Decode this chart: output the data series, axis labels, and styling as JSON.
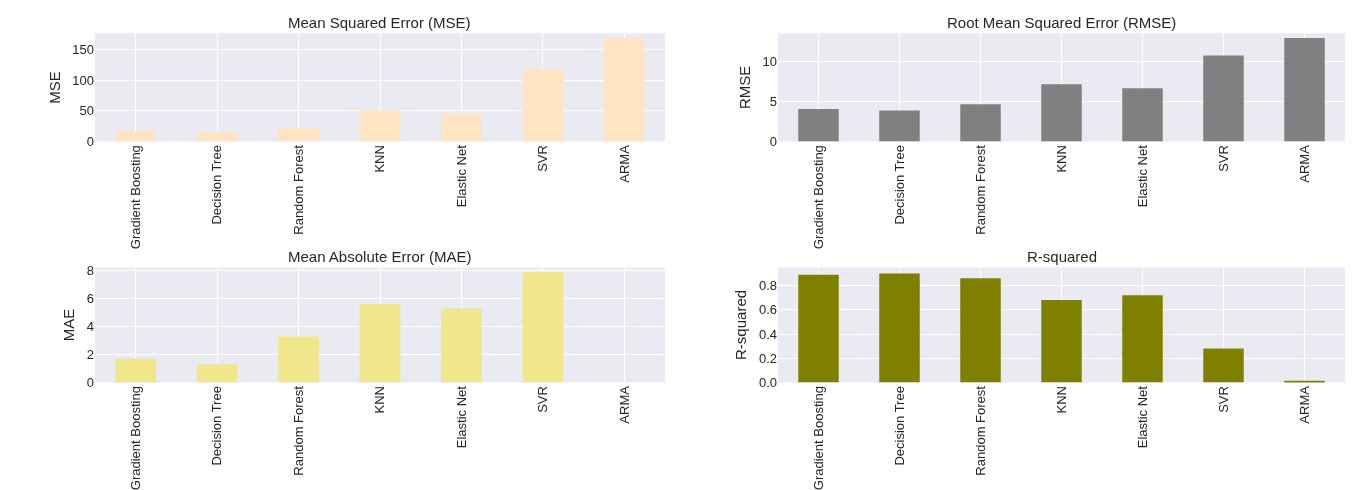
{
  "chart_data": [
    {
      "type": "bar",
      "title": "Mean Squared Error (MSE)",
      "ylabel": "MSE",
      "categories": [
        "Gradient Boosting",
        "Decision Tree",
        "Random Forest",
        "KNN",
        "Elastic Net",
        "SVR",
        "ARMA"
      ],
      "values": [
        17,
        15,
        22,
        51,
        45,
        117,
        168
      ],
      "color": "#ffe4c4",
      "ylim": [
        0,
        176
      ],
      "yticks": [
        0,
        50,
        100,
        150
      ],
      "grid": true
    },
    {
      "type": "bar",
      "title": "Root Mean Squared Error (RMSE)",
      "ylabel": "RMSE",
      "categories": [
        "Gradient Boosting",
        "Decision Tree",
        "Random Forest",
        "KNN",
        "Elastic Net",
        "SVR",
        "ARMA"
      ],
      "values": [
        4.1,
        3.9,
        4.7,
        7.2,
        6.7,
        10.8,
        13.0
      ],
      "color": "#808080",
      "ylim": [
        0,
        13.6
      ],
      "yticks": [
        0,
        5,
        10
      ],
      "grid": true
    },
    {
      "type": "bar",
      "title": "Mean Absolute Error (MAE)",
      "ylabel": "MAE",
      "categories": [
        "Gradient Boosting",
        "Decision Tree",
        "Random Forest",
        "KNN",
        "Elastic Net",
        "SVR",
        "ARMA"
      ],
      "values": [
        1.7,
        1.3,
        3.3,
        5.6,
        5.3,
        7.9,
        null
      ],
      "color": "#f0e68c",
      "ylim": [
        0,
        8.25
      ],
      "yticks": [
        0,
        2,
        4,
        6,
        8
      ],
      "grid": true
    },
    {
      "type": "bar",
      "title": "R-squared",
      "ylabel": "R-squared",
      "categories": [
        "Gradient Boosting",
        "Decision Tree",
        "Random Forest",
        "KNN",
        "Elastic Net",
        "SVR",
        "ARMA"
      ],
      "values": [
        0.89,
        0.9,
        0.86,
        0.68,
        0.72,
        0.28,
        0.015
      ],
      "color": "#808000",
      "ylim": [
        0,
        0.95
      ],
      "yticks": [
        {
          "value": 0,
          "label": "0.0"
        },
        0.2,
        0.4,
        0.6,
        0.8
      ],
      "grid": true
    }
  ]
}
